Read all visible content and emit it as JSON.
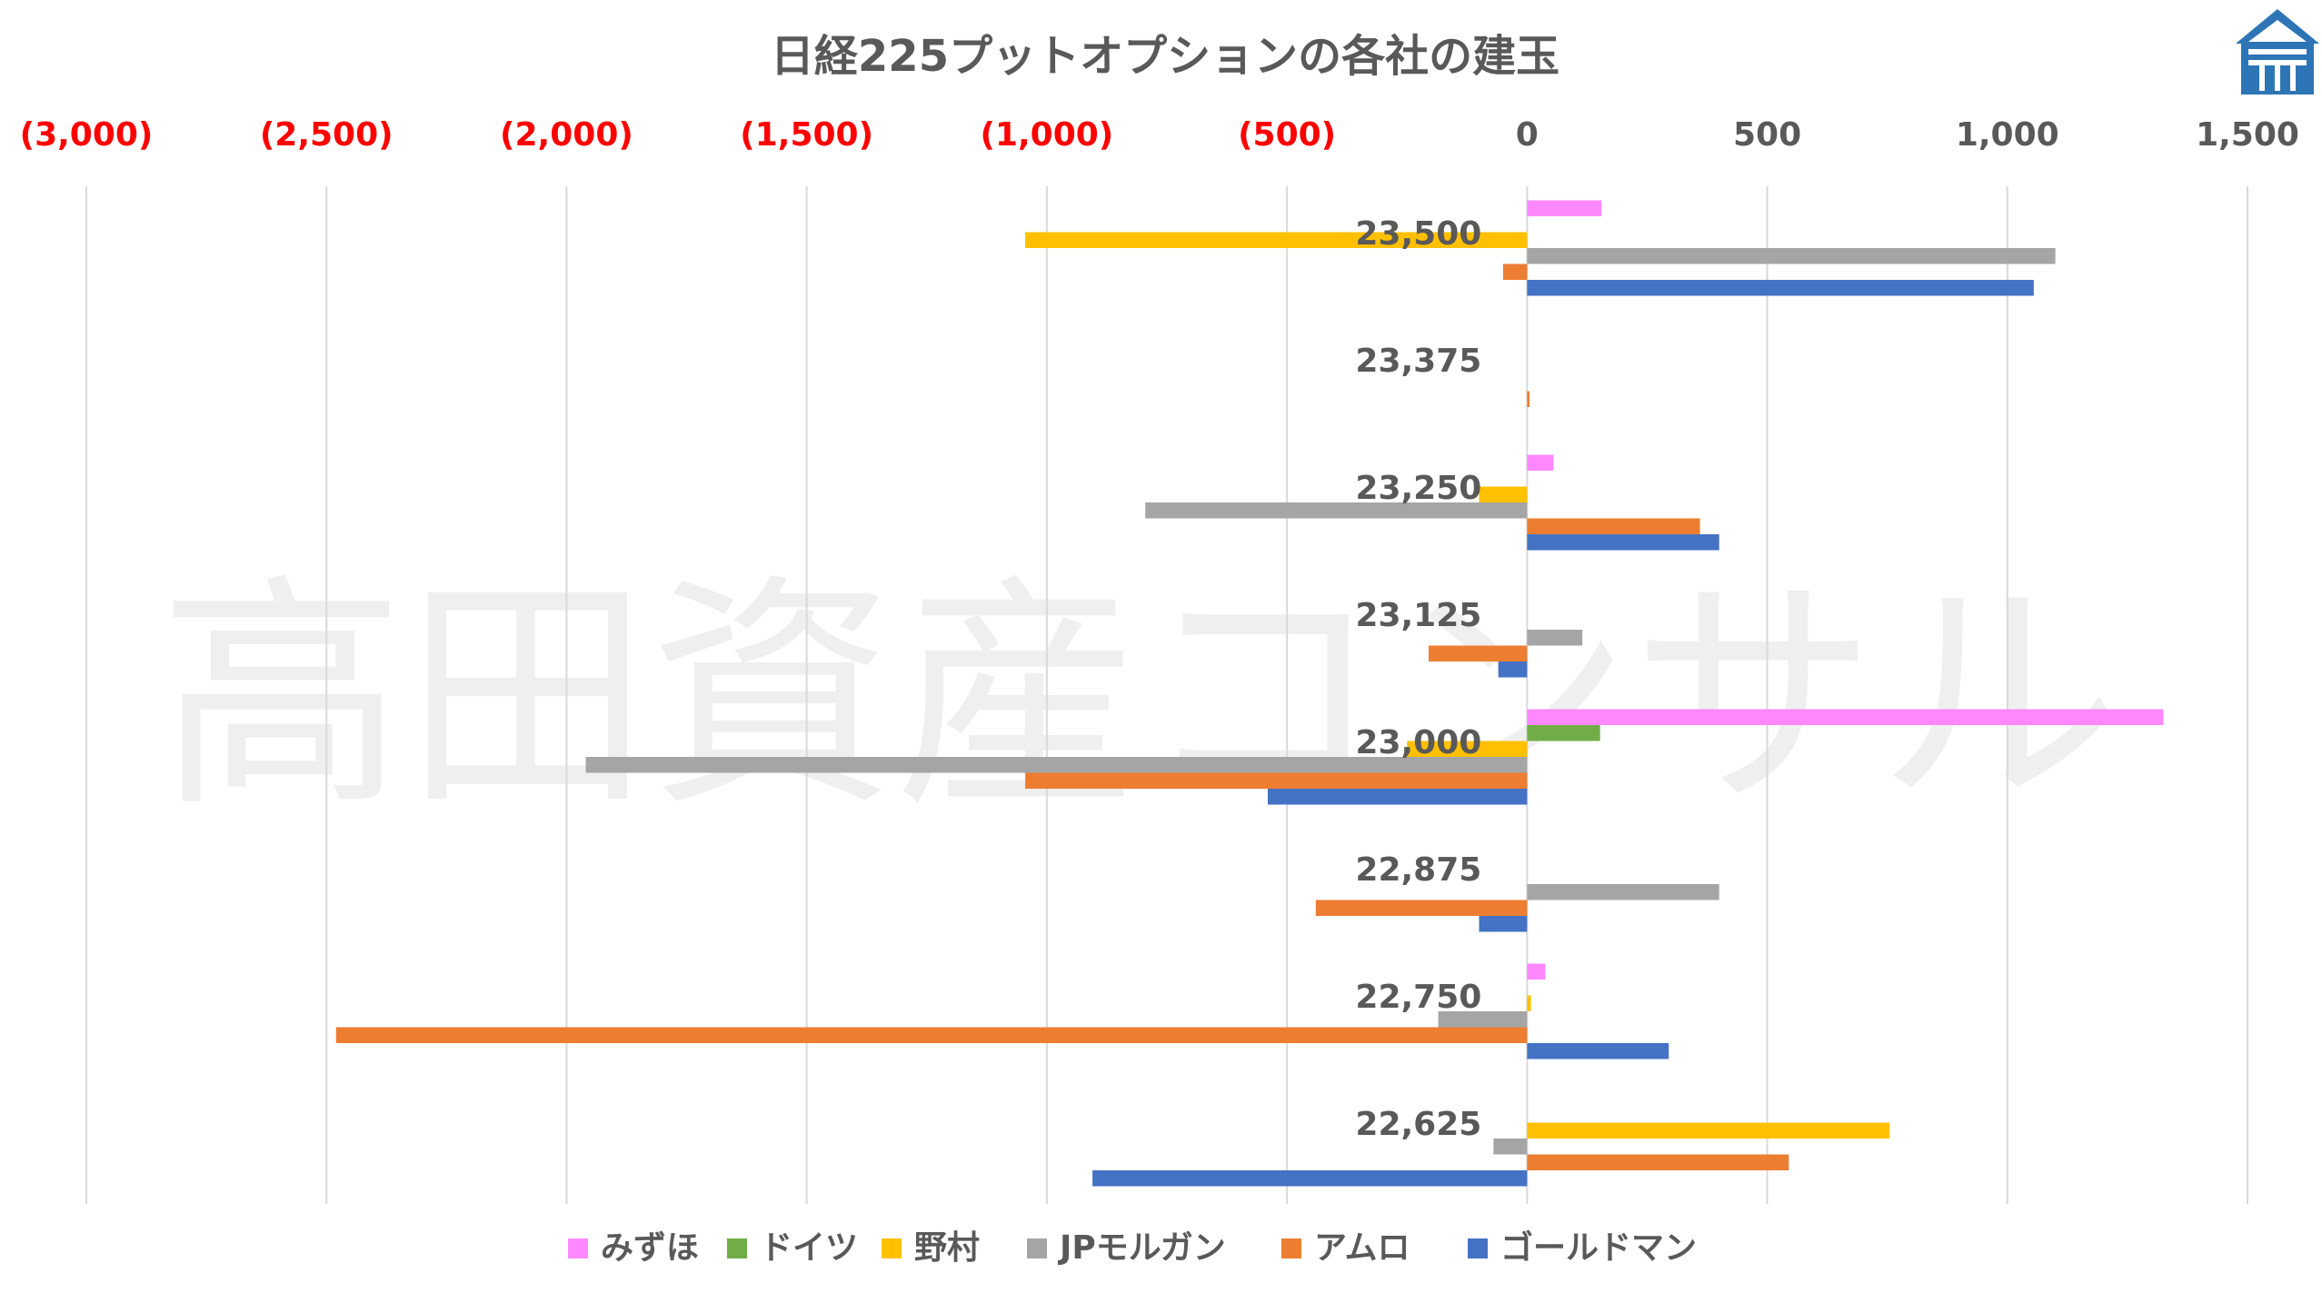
{
  "chart_data": {
    "type": "bar",
    "orientation": "horizontal",
    "title": "日経225プットオプションの各社の建玉",
    "watermark": "高田資産コンサル",
    "logo_icon": "house-logo-icon",
    "xlim": [
      -3000,
      1500
    ],
    "x_ticks": [
      {
        "value": -3000,
        "label": "(3,000)",
        "color": "#ff0000"
      },
      {
        "value": -2500,
        "label": "(2,500)",
        "color": "#ff0000"
      },
      {
        "value": -2000,
        "label": "(2,000)",
        "color": "#ff0000"
      },
      {
        "value": -1500,
        "label": "(1,500)",
        "color": "#ff0000"
      },
      {
        "value": -1000,
        "label": "(1,000)",
        "color": "#ff0000"
      },
      {
        "value": -500,
        "label": "(500)",
        "color": "#ff0000"
      },
      {
        "value": 0,
        "label": "0",
        "color": "#595959"
      },
      {
        "value": 500,
        "label": "500",
        "color": "#595959"
      },
      {
        "value": 1000,
        "label": "1,000",
        "color": "#595959"
      },
      {
        "value": 1500,
        "label": "1,500",
        "color": "#595959"
      }
    ],
    "grid": true,
    "legend_position": "bottom",
    "categories": [
      "23,500",
      "23,375",
      "23,250",
      "23,125",
      "23,000",
      "22,875",
      "22,750",
      "22,625"
    ],
    "series": [
      {
        "name": "みずほ",
        "color": "#ff88ff",
        "values": [
          155,
          0,
          55,
          0,
          1325,
          0,
          38,
          0
        ]
      },
      {
        "name": "ドイツ",
        "color": "#70ad47",
        "values": [
          0,
          0,
          0,
          0,
          152,
          0,
          0,
          0
        ]
      },
      {
        "name": "野村",
        "color": "#ffc000",
        "values": [
          -1045,
          0,
          -100,
          0,
          -250,
          0,
          8,
          755
        ]
      },
      {
        "name": "JPモルガン",
        "color": "#a5a5a5",
        "values": [
          1100,
          0,
          -795,
          115,
          -1960,
          400,
          -185,
          -70
        ]
      },
      {
        "name": "アムロ",
        "color": "#ed7d31",
        "values": [
          -50,
          5,
          360,
          -205,
          -1045,
          -440,
          -2480,
          545
        ]
      },
      {
        "name": "ゴールドマン",
        "color": "#4472c4",
        "values": [
          1055,
          0,
          400,
          -60,
          -540,
          -100,
          295,
          -905
        ]
      }
    ]
  }
}
